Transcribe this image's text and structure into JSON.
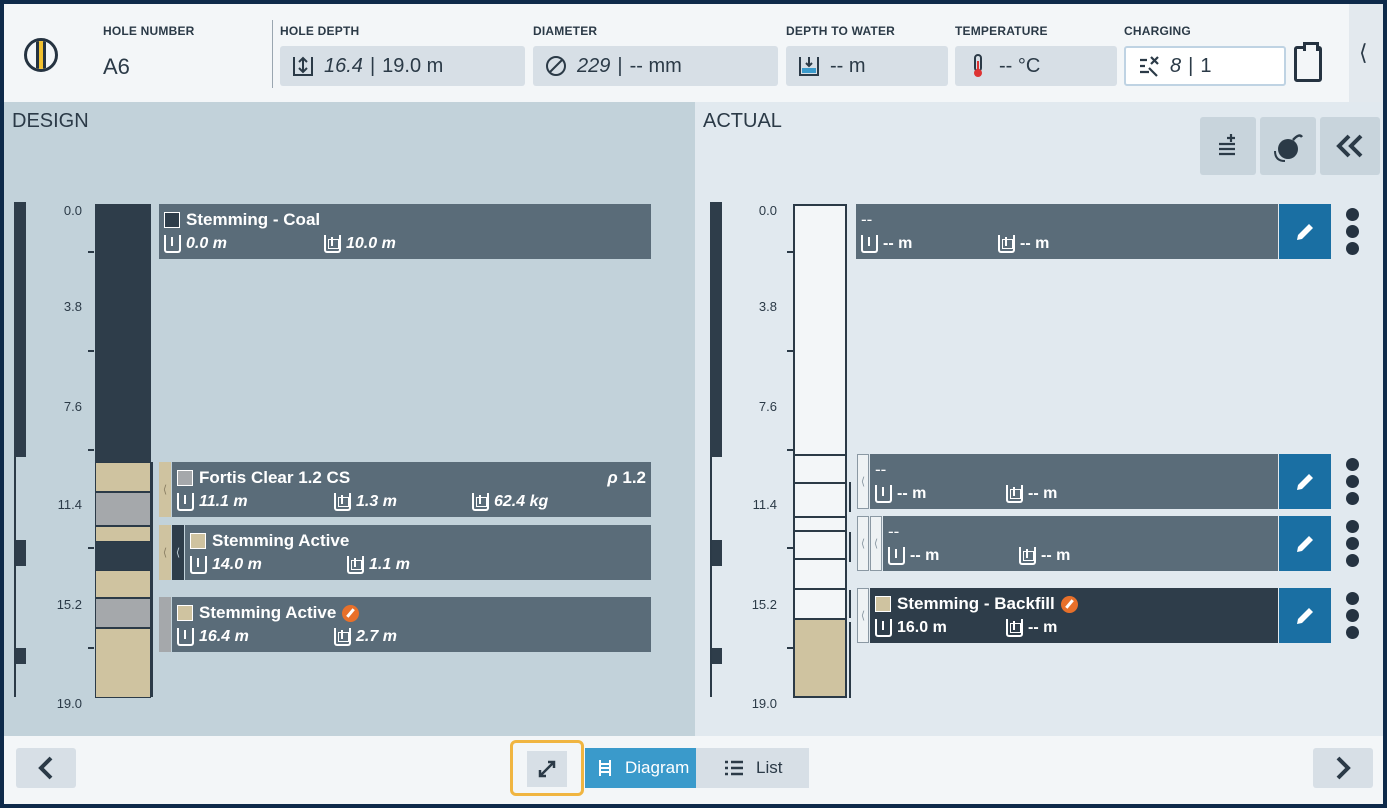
{
  "header": {
    "hole_number": {
      "label": "HOLE NUMBER",
      "value": "A6"
    },
    "hole_depth": {
      "label": "HOLE DEPTH",
      "design": "16.4",
      "actual": "19.0 m"
    },
    "diameter": {
      "label": "DIAMETER",
      "design": "229",
      "actual": "-- mm"
    },
    "depth_to_water": {
      "label": "DEPTH TO WATER",
      "value": "-- m"
    },
    "temperature": {
      "label": "TEMPERATURE",
      "value": "-- °C"
    },
    "charging": {
      "label": "CHARGING",
      "design": "8",
      "actual": "1"
    },
    "separator": "|",
    "collapse_glyph": "⟨"
  },
  "design": {
    "title": "DESIGN",
    "scale": [
      "0.0",
      "3.8",
      "7.6",
      "11.4",
      "15.2",
      "19.0"
    ],
    "decks": [
      {
        "name": "Stemming - Coal",
        "swatch": "#2e3d4a",
        "depth": "0.0 m",
        "length": "10.0 m"
      },
      {
        "name": "Fortis Clear 1.2 CS",
        "swatch": "#a5a8ab",
        "depth": "11.1 m",
        "length": "1.3 m",
        "mass": "62.4 kg",
        "density_label": "ρ",
        "density": "1.2"
      },
      {
        "name": "Stemming Active",
        "swatch": "#cfc3a0",
        "depth": "14.0 m",
        "length": "1.1 m"
      },
      {
        "name": "Stemming Active",
        "swatch": "#cfc3a0",
        "depth": "16.4 m",
        "length": "2.7 m"
      }
    ]
  },
  "actual": {
    "title": "ACTUAL",
    "scale": [
      "0.0",
      "3.8",
      "7.6",
      "11.4",
      "15.2",
      "19.0"
    ],
    "decks": [
      {
        "name": "--",
        "depth": "-- m",
        "length": "-- m"
      },
      {
        "name": "--",
        "depth": "-- m",
        "length": "-- m"
      },
      {
        "name": "--",
        "depth": "-- m",
        "length": "-- m"
      },
      {
        "name": "Stemming - Backfill",
        "swatch": "#cfc3a0",
        "depth": "16.0 m",
        "length": "-- m"
      }
    ]
  },
  "footer": {
    "diagram_label": "Diagram",
    "list_label": "List"
  },
  "colors": {
    "accent": "#3a9acb",
    "edit": "#1a6fa3",
    "highlight": "#f0b541",
    "stemming": "#cfc3a0",
    "coal": "#2e3d4a"
  }
}
